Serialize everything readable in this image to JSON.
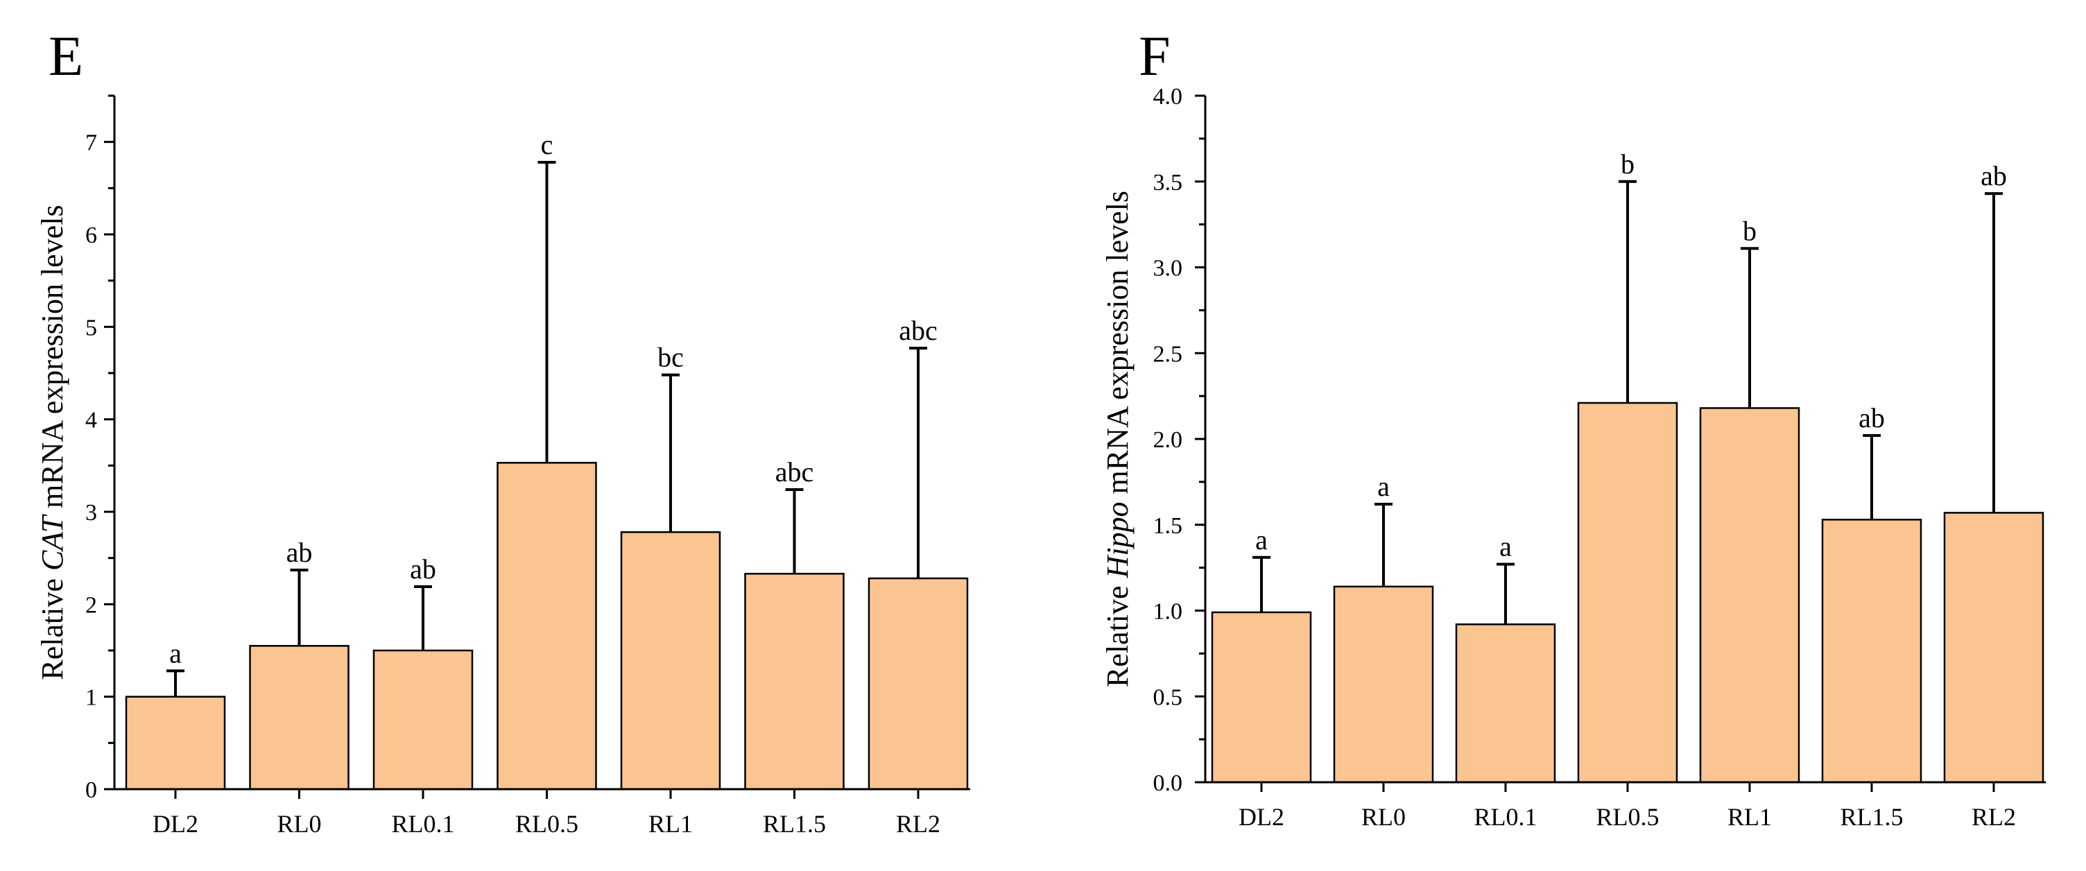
{
  "chart_data": [
    {
      "type": "bar",
      "panel_letter": "E",
      "title": "",
      "xlabel": "",
      "ylabel_prefix": "Relative ",
      "ylabel_gene": "CAT",
      "ylabel_suffix": " mRNA expression levels",
      "ylim": [
        0,
        7.5
      ],
      "yticks": [
        0,
        1,
        2,
        3,
        4,
        5,
        6,
        7
      ],
      "ytick_labels": [
        "0",
        "1",
        "2",
        "3",
        "4",
        "5",
        "6",
        "7"
      ],
      "categories": [
        "DL2",
        "RL0",
        "RL0.1",
        "RL0.5",
        "RL1",
        "RL1.5",
        "RL2"
      ],
      "values": [
        1.0,
        1.55,
        1.5,
        3.53,
        2.78,
        2.33,
        2.28
      ],
      "error_upper": [
        1.28,
        2.37,
        2.19,
        6.78,
        4.48,
        3.24,
        4.77
      ],
      "significance": [
        "a",
        "ab",
        "ab",
        "c",
        "bc",
        "abc",
        "abc"
      ],
      "bar_color": "#fac591"
    },
    {
      "type": "bar",
      "panel_letter": "F",
      "title": "",
      "xlabel": "",
      "ylabel_prefix": "Relative ",
      "ylabel_gene": "Hippo",
      "ylabel_suffix": " mRNA expression levels",
      "ylim": [
        0,
        4.0
      ],
      "yticks": [
        0,
        0.5,
        1.0,
        1.5,
        2.0,
        2.5,
        3.0,
        3.5,
        4.0
      ],
      "ytick_labels": [
        "0.0",
        "0.5",
        "1.0",
        "1.5",
        "2.0",
        "2.5",
        "3.0",
        "3.5",
        "4.0"
      ],
      "categories": [
        "DL2",
        "RL0",
        "RL0.1",
        "RL0.5",
        "RL1",
        "RL1.5",
        "RL2"
      ],
      "values": [
        0.99,
        1.14,
        0.92,
        2.21,
        2.18,
        1.53,
        1.57
      ],
      "error_upper": [
        1.31,
        1.62,
        1.27,
        3.5,
        3.11,
        2.02,
        3.43
      ],
      "significance": [
        "a",
        "a",
        "a",
        "b",
        "b",
        "ab",
        "ab"
      ],
      "bar_color": "#fac591"
    }
  ]
}
